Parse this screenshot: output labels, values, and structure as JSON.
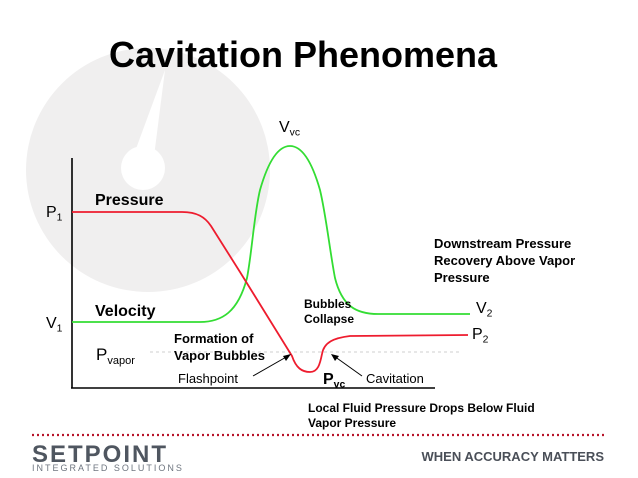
{
  "title": "Cavitation Phenomena",
  "labels": {
    "vvc": "V",
    "vvc_sub": "vc",
    "p1": "P",
    "p1_sub": "1",
    "pressure": "Pressure",
    "v1": "V",
    "v1_sub": "1",
    "velocity": "Velocity",
    "pvapor": "P",
    "pvapor_sub": "vapor",
    "formation_line1": "Formation of",
    "formation_line2": "Vapor Bubbles",
    "flashpoint": "Flashpoint",
    "bubbles_line1": "Bubbles",
    "bubbles_line2": "Collapse",
    "pvc": "P",
    "pvc_sub": "vc",
    "cavitation": "Cavitation",
    "downstream_line1": "Downstream Pressure",
    "downstream_line2": "Recovery Above Vapor",
    "downstream_line3": "Pressure",
    "v2": "V",
    "v2_sub": "2",
    "p2": "P",
    "p2_sub": "2",
    "local_line1": "Local Fluid Pressure Drops Below Fluid",
    "local_line2": "Vapor Pressure"
  },
  "footer": {
    "brand": "SETPOINT",
    "brand_sub": "INTEGRATED SOLUTIONS",
    "tagline": "WHEN ACCURACY MATTERS"
  },
  "colors": {
    "pressure_curve": "#ee1c2e",
    "velocity_curve": "#33dd33",
    "divider": "#b8142a",
    "watermark": "#f0efef"
  }
}
